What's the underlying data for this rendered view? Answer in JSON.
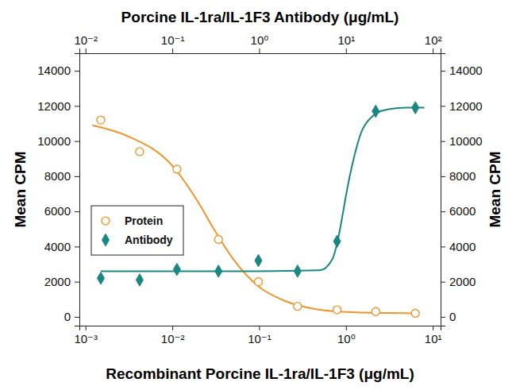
{
  "chart_data": {
    "type": "scatter",
    "x_label": "Recombinant Porcine IL-1ra/IL-1F3 (μg/mL)",
    "x2_label": "Porcine IL-1ra/IL-1F3 Antibody (μg/mL)",
    "y_label": "Mean CPM",
    "y2_label": "Mean CPM",
    "log": "x",
    "grid": false,
    "legend": "left",
    "xlim": [
      0.00085,
      12.3
    ],
    "xticks": [
      {
        "value": 0.001,
        "label": "10⁻³"
      },
      {
        "value": 0.01,
        "label": "10⁻²"
      },
      {
        "value": 0.1,
        "label": "10⁻¹"
      },
      {
        "value": 1,
        "label": "10⁰"
      },
      {
        "value": 10,
        "label": "10¹"
      }
    ],
    "x2lim": [
      0.0085,
      123
    ],
    "x2ticks": [
      {
        "value": 0.01,
        "label": "10⁻²"
      },
      {
        "value": 0.1,
        "label": "10⁻¹"
      },
      {
        "value": 1,
        "label": "10⁰"
      },
      {
        "value": 10,
        "label": "10¹"
      },
      {
        "value": 100,
        "label": "10²"
      }
    ],
    "ylim": [
      -500,
      15000
    ],
    "yticks": [
      0,
      2000,
      4000,
      6000,
      8000,
      10000,
      12000,
      14000
    ],
    "y2lim": [
      -500,
      15000
    ],
    "y2ticks": [
      0,
      2000,
      4000,
      6000,
      8000,
      10000,
      12000,
      14000
    ],
    "series": [
      {
        "name": "Protein",
        "type": "scatter",
        "color": "#f0962c",
        "marker": "circle-open",
        "x": [
          0.0015,
          0.0042,
          0.0113,
          0.034,
          0.098,
          0.277,
          0.79,
          2.2,
          6.3
        ],
        "values": [
          11200,
          9400,
          8400,
          4400,
          2000,
          600,
          400,
          300,
          200
        ]
      },
      {
        "name": "Antibody",
        "type": "scatter",
        "color": "#1b8783",
        "marker": "diamond",
        "axis": "x2",
        "x": [
          0.015,
          0.042,
          0.113,
          0.34,
          0.98,
          2.77,
          7.9,
          22,
          63
        ],
        "values": [
          2200,
          2100,
          2700,
          2600,
          3200,
          2600,
          4300,
          11700,
          11900
        ]
      },
      {
        "type": "line",
        "color": "#f0962c",
        "line_style": "solid",
        "x": [
          0.0012,
          0.003,
          0.01,
          0.02,
          0.03,
          0.05,
          0.1,
          0.2,
          0.5,
          1,
          3,
          6.3
        ],
        "values": [
          10900,
          10300,
          8600,
          6500,
          5000,
          3300,
          1700,
          900,
          400,
          280,
          220,
          200
        ]
      },
      {
        "type": "line",
        "color": "#1b8783",
        "line_style": "solid",
        "axis": "x2",
        "x": [
          0.015,
          0.1,
          1,
          5,
          7,
          8,
          9,
          10,
          12,
          15,
          20,
          25,
          30,
          50,
          80
        ],
        "values": [
          2600,
          2600,
          2600,
          2650,
          3300,
          4300,
          5600,
          6900,
          8800,
          10500,
          11400,
          11700,
          11800,
          11900,
          11900
        ]
      }
    ]
  }
}
